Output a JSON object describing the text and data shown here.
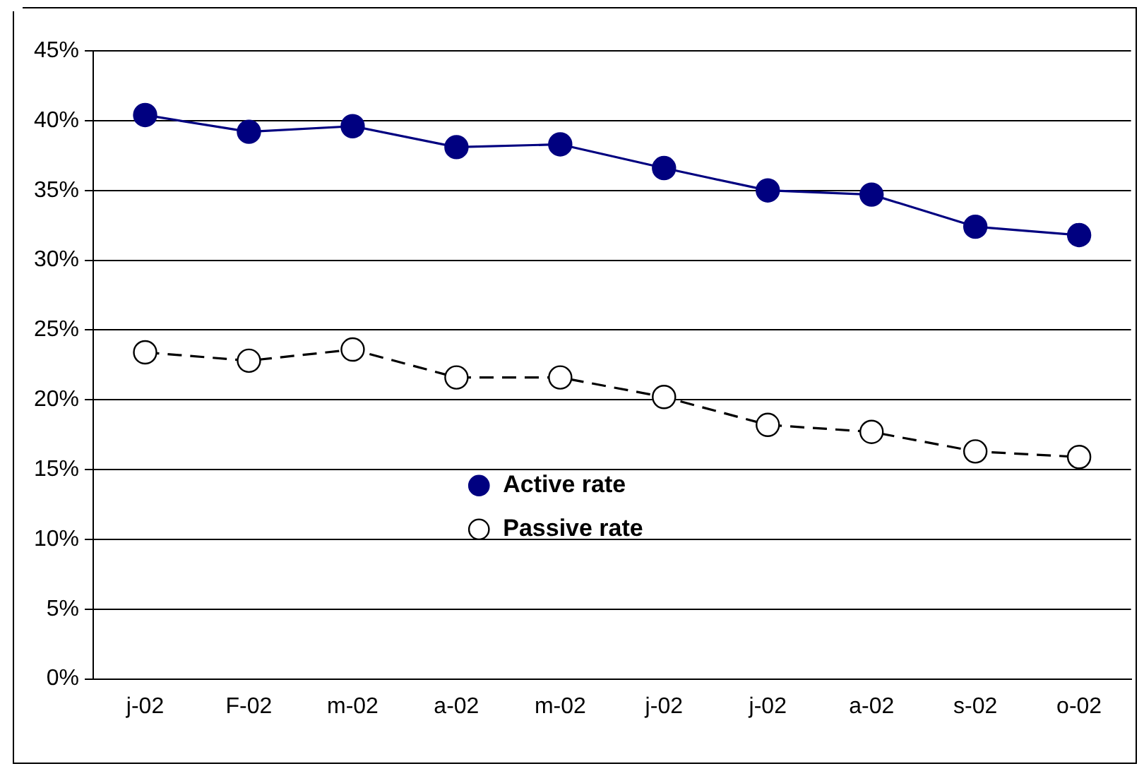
{
  "chart_data": {
    "type": "line",
    "categories": [
      "j-02",
      "F-02",
      "m-02",
      "a-02",
      "m-02",
      "j-02",
      "j-02",
      "a-02",
      "s-02",
      "o-02"
    ],
    "series": [
      {
        "name": "Active rate",
        "color": "#000080",
        "marker": "circle",
        "line_style": "solid",
        "values": [
          40.4,
          39.2,
          39.6,
          38.1,
          38.3,
          36.6,
          35.0,
          34.7,
          32.4,
          31.8
        ]
      },
      {
        "name": "Passive rate",
        "color": "#000000",
        "marker": "circle",
        "line_style": "dashed",
        "values": [
          23.4,
          22.8,
          23.6,
          21.6,
          21.6,
          20.2,
          18.2,
          17.7,
          16.3,
          15.9
        ]
      }
    ],
    "ylim": [
      0,
      45
    ],
    "yticks": [
      {
        "value": 0,
        "label": "0%"
      },
      {
        "value": 5,
        "label": "5%"
      },
      {
        "value": 10,
        "label": "10%"
      },
      {
        "value": 15,
        "label": "15%"
      },
      {
        "value": 20,
        "label": "20%"
      },
      {
        "value": 25,
        "label": "25%"
      },
      {
        "value": 30,
        "label": "30%"
      },
      {
        "value": 35,
        "label": "35%"
      },
      {
        "value": 40,
        "label": "40%"
      },
      {
        "value": 45,
        "label": "45%"
      }
    ],
    "grid": "y",
    "legend": "bottom"
  }
}
